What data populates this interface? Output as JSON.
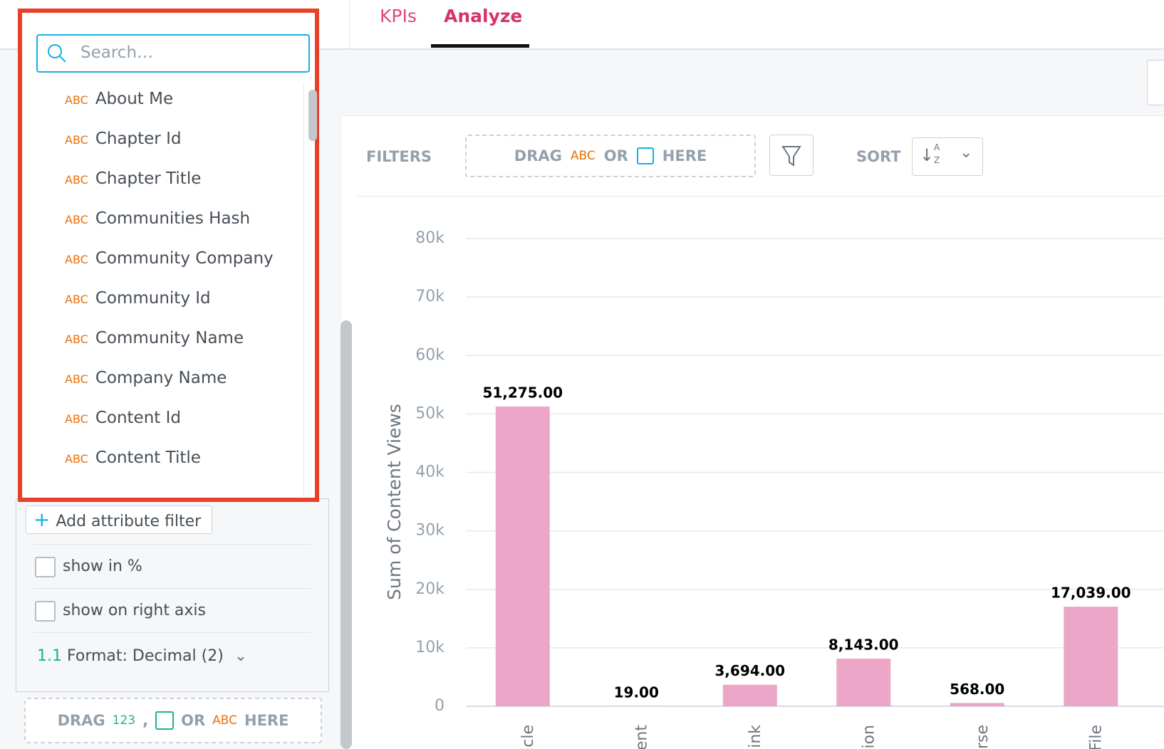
{
  "tabs": [
    "KPIs",
    "Analyze"
  ],
  "attribute_dropdown": {
    "search_placeholder": "Search…",
    "items": [
      {
        "type": "ABC",
        "name": "About Me"
      },
      {
        "type": "ABC",
        "name": "Chapter Id"
      },
      {
        "type": "ABC",
        "name": "Chapter Title"
      },
      {
        "type": "ABC",
        "name": "Communities Hash"
      },
      {
        "type": "ABC",
        "name": "Community Company"
      },
      {
        "type": "ABC",
        "name": "Community Id"
      },
      {
        "type": "ABC",
        "name": "Community Name"
      },
      {
        "type": "ABC",
        "name": "Company Name"
      },
      {
        "type": "ABC",
        "name": "Content Id"
      },
      {
        "type": "ABC",
        "name": "Content Title"
      }
    ]
  },
  "measure_panel": {
    "add_filter": "Add attribute filter",
    "show_percent": "show in %",
    "show_right_axis": "show on right axis",
    "format_icon": "1.1",
    "format": "Format: Decimal (2)",
    "drop_zone": {
      "drag": "DRAG",
      "measure_type": "123",
      "comma": ",",
      "or": "OR",
      "attribute_type": "ABC",
      "here": "HERE"
    }
  },
  "filter_bar": {
    "filters": "FILTERS",
    "drag": "DRAG",
    "attribute_type": "ABC",
    "or": "OR",
    "here": "HERE",
    "sort": "SORT",
    "sort_icon_a": "A",
    "sort_icon_z": "Z"
  },
  "chart_data": {
    "type": "bar",
    "y_label": "Sum of Content Views",
    "categories": [
      "icle",
      "ent",
      "ink",
      "ion",
      "urse",
      "File"
    ],
    "values": [
      51275,
      19,
      3694,
      8143,
      568,
      17039
    ],
    "value_labels": [
      "51,275.00",
      "19.00",
      "3,694.00",
      "8,143.00",
      "568.00",
      "17,039.00"
    ],
    "color": "#eca7c8",
    "ylim": [
      0,
      80000
    ],
    "yticks": [
      0,
      {
        "value": 10000,
        "label": "10k"
      },
      {
        "value": 20000,
        "label": "20k"
      },
      {
        "value": 30000,
        "label": "30k"
      },
      {
        "value": 40000,
        "label": "40k"
      },
      {
        "value": 50000,
        "label": "50k"
      },
      {
        "value": 60000,
        "label": "60k"
      },
      {
        "value": 70000,
        "label": "70k"
      },
      {
        "value": 80000,
        "label": "80k"
      }
    ],
    "grid": true
  }
}
